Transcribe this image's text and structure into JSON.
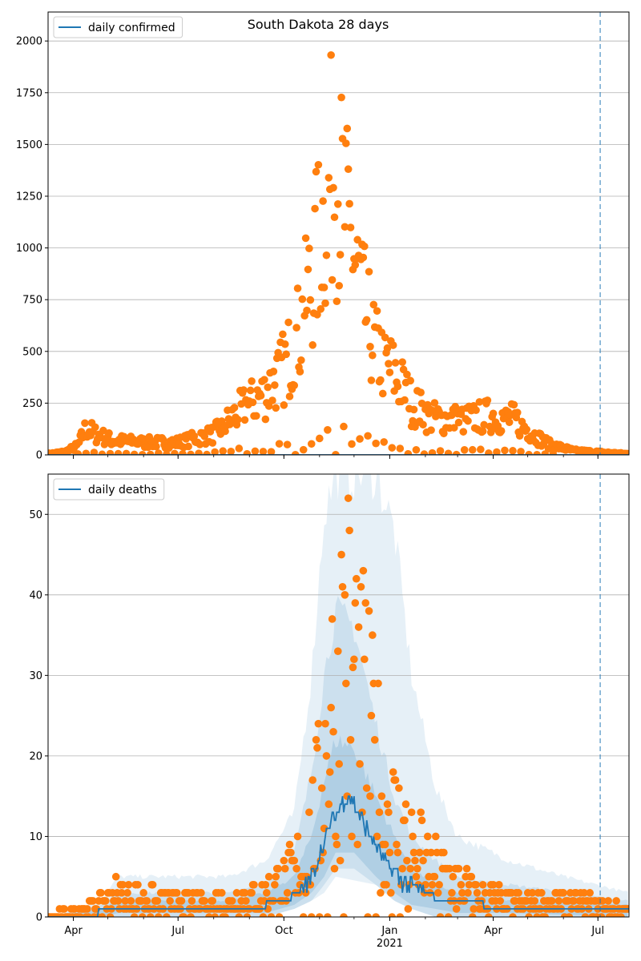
{
  "figure": {
    "title": "South Dakota 28 days",
    "colors": {
      "line": "#1f77b4",
      "points": "#ff7f0e",
      "band": "#1f77b4",
      "grid": "#b0b0b0",
      "vline": "#1f77b4"
    }
  },
  "chart_data": [
    {
      "type": "scatter",
      "name": "top",
      "legend": {
        "label": "daily confirmed",
        "loc": "upper left"
      },
      "grid": "y",
      "ylim": [
        0,
        2140
      ],
      "yticks": [
        0,
        250,
        500,
        750,
        1000,
        1250,
        1500,
        1750,
        2000
      ],
      "xlim": [
        "2020-03-10",
        "2021-07-28"
      ],
      "xticks": [
        {
          "date": "2020-04-01",
          "label": "Apr"
        },
        {
          "date": "2020-07-01",
          "label": "Jul"
        },
        {
          "date": "2020-10-01",
          "label": "Oct"
        },
        {
          "date": "2021-01-01",
          "label": "Jan",
          "sublabel": "2021"
        },
        {
          "date": "2021-04-01",
          "label": "Apr"
        },
        {
          "date": "2021-07-01",
          "label": "Jul"
        }
      ],
      "vline_date": "2021-07-03",
      "line": {
        "name": "daily confirmed",
        "anchors": [
          [
            "2020-03-10",
            0
          ],
          [
            "2021-07-28",
            0
          ]
        ]
      },
      "observed_anchors": [
        [
          "2020-03-10",
          5
        ],
        [
          "2020-03-25",
          15
        ],
        [
          "2020-04-05",
          45
        ],
        [
          "2020-04-12",
          130
        ],
        [
          "2020-04-20",
          100
        ],
        [
          "2020-05-05",
          70
        ],
        [
          "2020-06-01",
          60
        ],
        [
          "2020-07-01",
          60
        ],
        [
          "2020-08-01",
          100
        ],
        [
          "2020-08-25",
          220
        ],
        [
          "2020-09-15",
          300
        ],
        [
          "2020-10-01",
          420
        ],
        [
          "2020-10-15",
          600
        ],
        [
          "2020-10-25",
          850
        ],
        [
          "2020-11-05",
          1150
        ],
        [
          "2020-11-13",
          1400
        ],
        [
          "2020-11-20",
          1250
        ],
        [
          "2020-12-01",
          950
        ],
        [
          "2020-12-10",
          700
        ],
        [
          "2020-12-20",
          500
        ],
        [
          "2021-01-01",
          420
        ],
        [
          "2021-01-10",
          350
        ],
        [
          "2021-01-20",
          250
        ],
        [
          "2021-02-05",
          180
        ],
        [
          "2021-03-01",
          170
        ],
        [
          "2021-04-01",
          190
        ],
        [
          "2021-04-20",
          170
        ],
        [
          "2021-05-05",
          100
        ],
        [
          "2021-05-20",
          50
        ],
        [
          "2021-06-10",
          20
        ],
        [
          "2021-07-28",
          5
        ]
      ]
    },
    {
      "type": "scatter",
      "name": "bottom",
      "legend": {
        "label": "daily deaths",
        "loc": "upper left"
      },
      "grid": "y",
      "ylim": [
        0,
        55
      ],
      "yticks": [
        0,
        10,
        20,
        30,
        40,
        50
      ],
      "xlim": [
        "2020-03-10",
        "2021-07-28"
      ],
      "xticks": [
        {
          "date": "2020-04-01",
          "label": "Apr"
        },
        {
          "date": "2020-07-01",
          "label": "Jul"
        },
        {
          "date": "2020-10-01",
          "label": "Oct"
        },
        {
          "date": "2021-01-01",
          "label": "Jan",
          "sublabel": "2021"
        },
        {
          "date": "2021-04-01",
          "label": "Apr"
        },
        {
          "date": "2021-07-01",
          "label": "Jul"
        }
      ],
      "vline_date": "2021-07-03",
      "line": {
        "name": "daily deaths",
        "anchors": [
          [
            "2020-03-10",
            0
          ],
          [
            "2020-04-20",
            0
          ],
          [
            "2020-04-25",
            1
          ],
          [
            "2020-07-20",
            1
          ],
          [
            "2020-09-01",
            1
          ],
          [
            "2020-10-01",
            2
          ],
          [
            "2020-10-15",
            3
          ],
          [
            "2020-10-25",
            5
          ],
          [
            "2020-11-05",
            9
          ],
          [
            "2020-11-12",
            12
          ],
          [
            "2020-11-20",
            14
          ],
          [
            "2020-11-27",
            15
          ],
          [
            "2020-12-05",
            13
          ],
          [
            "2020-12-15",
            10
          ],
          [
            "2021-01-01",
            6
          ],
          [
            "2021-01-15",
            4
          ],
          [
            "2021-02-01",
            3
          ],
          [
            "2021-02-15",
            2
          ],
          [
            "2021-03-15",
            2
          ],
          [
            "2021-04-01",
            1
          ],
          [
            "2021-07-28",
            1
          ]
        ]
      },
      "bands": [
        {
          "opacity": 0.11,
          "anchors": [
            [
              "2020-03-10",
              0,
              0
            ],
            [
              "2020-04-25",
              0,
              2
            ],
            [
              "2020-05-10",
              0,
              5
            ],
            [
              "2020-08-15",
              0,
              5
            ],
            [
              "2020-09-15",
              0,
              7
            ],
            [
              "2020-10-10",
              1,
              13
            ],
            [
              "2020-10-25",
              2,
              30
            ],
            [
              "2020-11-05",
              3,
              50
            ],
            [
              "2020-11-15",
              5,
              55
            ],
            [
              "2020-12-20",
              4,
              55
            ],
            [
              "2021-01-05",
              2,
              48
            ],
            [
              "2021-01-20",
              1,
              30
            ],
            [
              "2021-02-10",
              0,
              16
            ],
            [
              "2021-03-01",
              0,
              10
            ],
            [
              "2021-04-15",
              0,
              7
            ],
            [
              "2021-06-01",
              0,
              5
            ],
            [
              "2021-07-28",
              0,
              3
            ]
          ]
        },
        {
          "opacity": 0.13,
          "anchors": [
            [
              "2020-03-10",
              0,
              0
            ],
            [
              "2020-04-25",
              0,
              1.5
            ],
            [
              "2020-05-10",
              0,
              3
            ],
            [
              "2020-08-15",
              0,
              3
            ],
            [
              "2020-09-15",
              0,
              4
            ],
            [
              "2020-10-10",
              1,
              8
            ],
            [
              "2020-10-25",
              2,
              18
            ],
            [
              "2020-11-05",
              4,
              30
            ],
            [
              "2020-11-15",
              6,
              38
            ],
            [
              "2020-12-01",
              6,
              36
            ],
            [
              "2020-12-20",
              4,
              24
            ],
            [
              "2021-01-05",
              2,
              15
            ],
            [
              "2021-01-20",
              1,
              10
            ],
            [
              "2021-02-10",
              0,
              7
            ],
            [
              "2021-03-01",
              0,
              5
            ],
            [
              "2021-04-15",
              0,
              4
            ],
            [
              "2021-07-28",
              0,
              2
            ]
          ]
        },
        {
          "opacity": 0.16,
          "anchors": [
            [
              "2020-03-10",
              0,
              0
            ],
            [
              "2020-04-25",
              0,
              1
            ],
            [
              "2020-05-10",
              0.5,
              2
            ],
            [
              "2020-08-15",
              0.5,
              2
            ],
            [
              "2020-09-15",
              0.5,
              3
            ],
            [
              "2020-10-10",
              1.5,
              5
            ],
            [
              "2020-10-25",
              3,
              10
            ],
            [
              "2020-11-05",
              5,
              17
            ],
            [
              "2020-11-15",
              8,
              22
            ],
            [
              "2020-12-01",
              8,
              21
            ],
            [
              "2020-12-20",
              5,
              15
            ],
            [
              "2021-01-05",
              3,
              10
            ],
            [
              "2021-01-20",
              1.5,
              6
            ],
            [
              "2021-02-10",
              1,
              4
            ],
            [
              "2021-03-01",
              0.5,
              3
            ],
            [
              "2021-04-15",
              0.5,
              2
            ],
            [
              "2021-07-28",
              0,
              1.5
            ]
          ]
        }
      ],
      "observed_anchors": [
        [
          "2020-03-10",
          0
        ],
        [
          "2020-04-10",
          1
        ],
        [
          "2020-04-25",
          2
        ],
        [
          "2020-05-10",
          3
        ],
        [
          "2020-06-15",
          2
        ],
        [
          "2020-07-15",
          2
        ],
        [
          "2020-08-15",
          2
        ],
        [
          "2020-09-15",
          3
        ],
        [
          "2020-10-05",
          5
        ],
        [
          "2020-10-20",
          8
        ],
        [
          "2020-11-01",
          15
        ],
        [
          "2020-11-10",
          25
        ],
        [
          "2020-11-20",
          32
        ],
        [
          "2020-11-28",
          34
        ],
        [
          "2020-12-08",
          27
        ],
        [
          "2020-12-18",
          20
        ],
        [
          "2021-01-01",
          13
        ],
        [
          "2021-01-15",
          10
        ],
        [
          "2021-02-01",
          7
        ],
        [
          "2021-02-20",
          5
        ],
        [
          "2021-03-15",
          3
        ],
        [
          "2021-04-15",
          2
        ],
        [
          "2021-06-01",
          2
        ],
        [
          "2021-07-28",
          1
        ]
      ]
    }
  ]
}
